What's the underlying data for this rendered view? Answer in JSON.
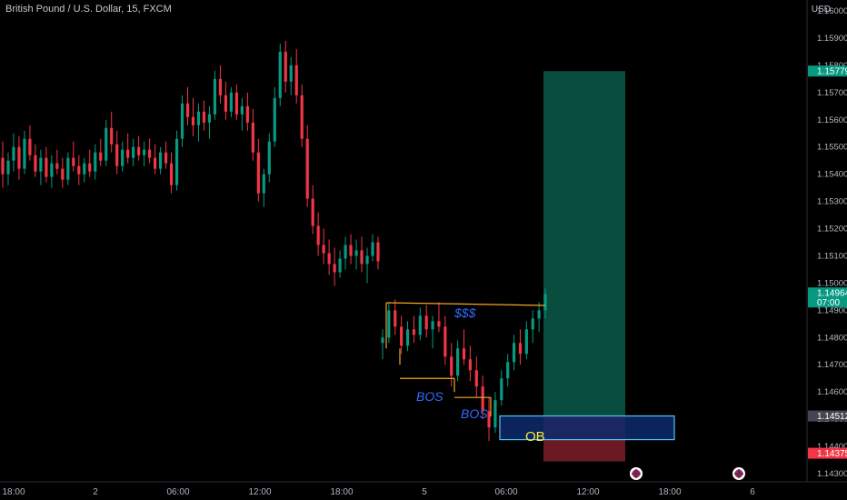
{
  "header": {
    "symbol": "British Pound / U.S. Dollar, 15, FXCM",
    "currency": "USD"
  },
  "chart_data": {
    "type": "candlestick",
    "y_ticks": [
      "1.16000",
      "1.15900",
      "1.15800",
      "1.15700",
      "1.15600",
      "1.15500",
      "1.15400",
      "1.15300",
      "1.15200",
      "1.15100",
      "1.15000",
      "1.14900",
      "1.14800",
      "1.14700",
      "1.14600",
      "1.14500",
      "1.14400",
      "1.14300"
    ],
    "y_tick_values": [
      1.16,
      1.159,
      1.158,
      1.157,
      1.156,
      1.155,
      1.154,
      1.153,
      1.152,
      1.151,
      1.15,
      1.149,
      1.148,
      1.147,
      1.146,
      1.145,
      1.144,
      1.143
    ],
    "ylim": [
      1.1427,
      1.1604
    ],
    "x_ticks": [
      "18:00",
      "2",
      "06:00",
      "12:00",
      "18:00",
      "5",
      "06:00",
      "12:00",
      "18:00",
      "6"
    ],
    "price_labels": {
      "target": {
        "text": "1.15779",
        "value": 1.15779,
        "color": "#089981"
      },
      "current": {
        "text": "1.14964",
        "value": 1.14964,
        "countdown": "07:00",
        "color": "#089981"
      },
      "entry": {
        "text": "1.14512",
        "value": 1.14512,
        "color": "#434651"
      },
      "stop": {
        "text": "1.14375",
        "value": 1.14375,
        "color": "#f23645"
      }
    },
    "annotations": {
      "liquidity": "$$$",
      "bos_1": "BOS",
      "bos_2": "BOS",
      "order_block": "OB"
    },
    "colors": {
      "up": "#089981",
      "down": "#f23645",
      "profit_zone": "#084d3e",
      "loss_zone": "#6b1a24",
      "order_block": "#0d2a6b",
      "order_block_border": "#4fc3f7",
      "structure_line": "#f5a623"
    },
    "candles": [
      [
        1.1546,
        1.1552,
        1.1535,
        1.154
      ],
      [
        1.154,
        1.1548,
        1.1536,
        1.1545
      ],
      [
        1.1545,
        1.1555,
        1.1541,
        1.155
      ],
      [
        1.155,
        1.1554,
        1.1538,
        1.1542
      ],
      [
        1.1542,
        1.1556,
        1.154,
        1.1553
      ],
      [
        1.1553,
        1.1558,
        1.1545,
        1.1547
      ],
      [
        1.1547,
        1.1551,
        1.1539,
        1.1541
      ],
      [
        1.1541,
        1.1549,
        1.1536,
        1.1546
      ],
      [
        1.1546,
        1.155,
        1.1537,
        1.1539
      ],
      [
        1.1539,
        1.1547,
        1.1535,
        1.1544
      ],
      [
        1.1544,
        1.1549,
        1.154,
        1.1542
      ],
      [
        1.1542,
        1.1546,
        1.1535,
        1.1538
      ],
      [
        1.1538,
        1.1548,
        1.1536,
        1.1546
      ],
      [
        1.1546,
        1.1552,
        1.1541,
        1.1543
      ],
      [
        1.1543,
        1.1547,
        1.1536,
        1.154
      ],
      [
        1.154,
        1.1546,
        1.1537,
        1.1544
      ],
      [
        1.1544,
        1.1549,
        1.1539,
        1.1541
      ],
      [
        1.1541,
        1.1551,
        1.1538,
        1.1548
      ],
      [
        1.1548,
        1.1553,
        1.1543,
        1.1545
      ],
      [
        1.1545,
        1.156,
        1.1543,
        1.1557
      ],
      [
        1.1557,
        1.1563,
        1.1548,
        1.1551
      ],
      [
        1.1551,
        1.1556,
        1.154,
        1.1543
      ],
      [
        1.1543,
        1.1552,
        1.1541,
        1.1549
      ],
      [
        1.1549,
        1.1555,
        1.1544,
        1.1546
      ],
      [
        1.1546,
        1.1553,
        1.1543,
        1.155
      ],
      [
        1.155,
        1.1554,
        1.1545,
        1.1547
      ],
      [
        1.1547,
        1.1552,
        1.1543,
        1.1549
      ],
      [
        1.1549,
        1.1553,
        1.1544,
        1.1546
      ],
      [
        1.1546,
        1.1551,
        1.154,
        1.1542
      ],
      [
        1.1542,
        1.155,
        1.154,
        1.1548
      ],
      [
        1.1548,
        1.1552,
        1.1542,
        1.1544
      ],
      [
        1.1544,
        1.1548,
        1.1533,
        1.1536
      ],
      [
        1.1536,
        1.1556,
        1.1534,
        1.1553
      ],
      [
        1.1553,
        1.1569,
        1.155,
        1.1566
      ],
      [
        1.1566,
        1.1572,
        1.1558,
        1.1561
      ],
      [
        1.1561,
        1.1568,
        1.1554,
        1.1558
      ],
      [
        1.1558,
        1.1566,
        1.1552,
        1.1563
      ],
      [
        1.1563,
        1.1567,
        1.1556,
        1.1559
      ],
      [
        1.1559,
        1.1565,
        1.1553,
        1.1562
      ],
      [
        1.1562,
        1.1578,
        1.156,
        1.1575
      ],
      [
        1.1575,
        1.158,
        1.1566,
        1.1569
      ],
      [
        1.1569,
        1.1574,
        1.156,
        1.1563
      ],
      [
        1.1563,
        1.1572,
        1.1561,
        1.157
      ],
      [
        1.157,
        1.1573,
        1.156,
        1.1562
      ],
      [
        1.1562,
        1.1568,
        1.1556,
        1.1565
      ],
      [
        1.1565,
        1.157,
        1.1556,
        1.1559
      ],
      [
        1.1559,
        1.1564,
        1.1545,
        1.1548
      ],
      [
        1.1548,
        1.1553,
        1.153,
        1.1533
      ],
      [
        1.1533,
        1.1542,
        1.1528,
        1.154
      ],
      [
        1.154,
        1.1555,
        1.1537,
        1.1552
      ],
      [
        1.1552,
        1.1572,
        1.155,
        1.1568
      ],
      [
        1.1568,
        1.1588,
        1.1565,
        1.1585
      ],
      [
        1.1585,
        1.1589,
        1.157,
        1.1574
      ],
      [
        1.1574,
        1.1583,
        1.1569,
        1.158
      ],
      [
        1.158,
        1.1586,
        1.1566,
        1.1569
      ],
      [
        1.1569,
        1.1573,
        1.155,
        1.1553
      ],
      [
        1.1553,
        1.1558,
        1.1528,
        1.1531
      ],
      [
        1.1531,
        1.1536,
        1.1518,
        1.1521
      ],
      [
        1.1521,
        1.1526,
        1.151,
        1.1514
      ],
      [
        1.1514,
        1.152,
        1.1507,
        1.1511
      ],
      [
        1.1511,
        1.1516,
        1.1503,
        1.1507
      ],
      [
        1.1507,
        1.1513,
        1.1499,
        1.1504
      ],
      [
        1.1504,
        1.1512,
        1.1502,
        1.1509
      ],
      [
        1.1509,
        1.1517,
        1.1505,
        1.1514
      ],
      [
        1.1514,
        1.1518,
        1.1507,
        1.151
      ],
      [
        1.151,
        1.1516,
        1.1505,
        1.1512
      ],
      [
        1.1512,
        1.1517,
        1.1504,
        1.1507
      ],
      [
        1.1507,
        1.1513,
        1.15,
        1.151
      ],
      [
        1.151,
        1.1518,
        1.1508,
        1.1515
      ],
      [
        1.1515,
        1.1517,
        1.1505,
        1.1508
      ],
      [
        1.1478,
        1.1483,
        1.1472,
        1.148
      ],
      [
        1.148,
        1.1493,
        1.1478,
        1.149
      ],
      [
        1.149,
        1.1494,
        1.1481,
        1.1484
      ],
      [
        1.1484,
        1.1488,
        1.1474,
        1.1477
      ],
      [
        1.1477,
        1.1486,
        1.1475,
        1.1483
      ],
      [
        1.1483,
        1.1488,
        1.1478,
        1.1481
      ],
      [
        1.1481,
        1.1491,
        1.1479,
        1.1488
      ],
      [
        1.1488,
        1.1492,
        1.148,
        1.1483
      ],
      [
        1.1483,
        1.1488,
        1.1476,
        1.1486
      ],
      [
        1.1486,
        1.1493,
        1.1482,
        1.1484
      ],
      [
        1.1484,
        1.1488,
        1.147,
        1.1473
      ],
      [
        1.1473,
        1.1478,
        1.1462,
        1.1466
      ],
      [
        1.1466,
        1.1479,
        1.1464,
        1.1476
      ],
      [
        1.1476,
        1.1483,
        1.147,
        1.1472
      ],
      [
        1.1472,
        1.1477,
        1.1464,
        1.1468
      ],
      [
        1.1468,
        1.1473,
        1.1458,
        1.1462
      ],
      [
        1.1462,
        1.1466,
        1.145,
        1.1453
      ],
      [
        1.1453,
        1.1458,
        1.1442,
        1.1447
      ],
      [
        1.1447,
        1.146,
        1.1445,
        1.1457
      ],
      [
        1.1457,
        1.1468,
        1.1455,
        1.1465
      ],
      [
        1.1465,
        1.1474,
        1.1462,
        1.1471
      ],
      [
        1.1471,
        1.1481,
        1.1468,
        1.1478
      ],
      [
        1.1478,
        1.1483,
        1.147,
        1.1474
      ],
      [
        1.1474,
        1.1486,
        1.1472,
        1.1483
      ],
      [
        1.1483,
        1.149,
        1.1478,
        1.1487
      ],
      [
        1.1487,
        1.1493,
        1.1482,
        1.149
      ],
      [
        1.149,
        1.1498,
        1.1487,
        1.1496
      ]
    ]
  }
}
